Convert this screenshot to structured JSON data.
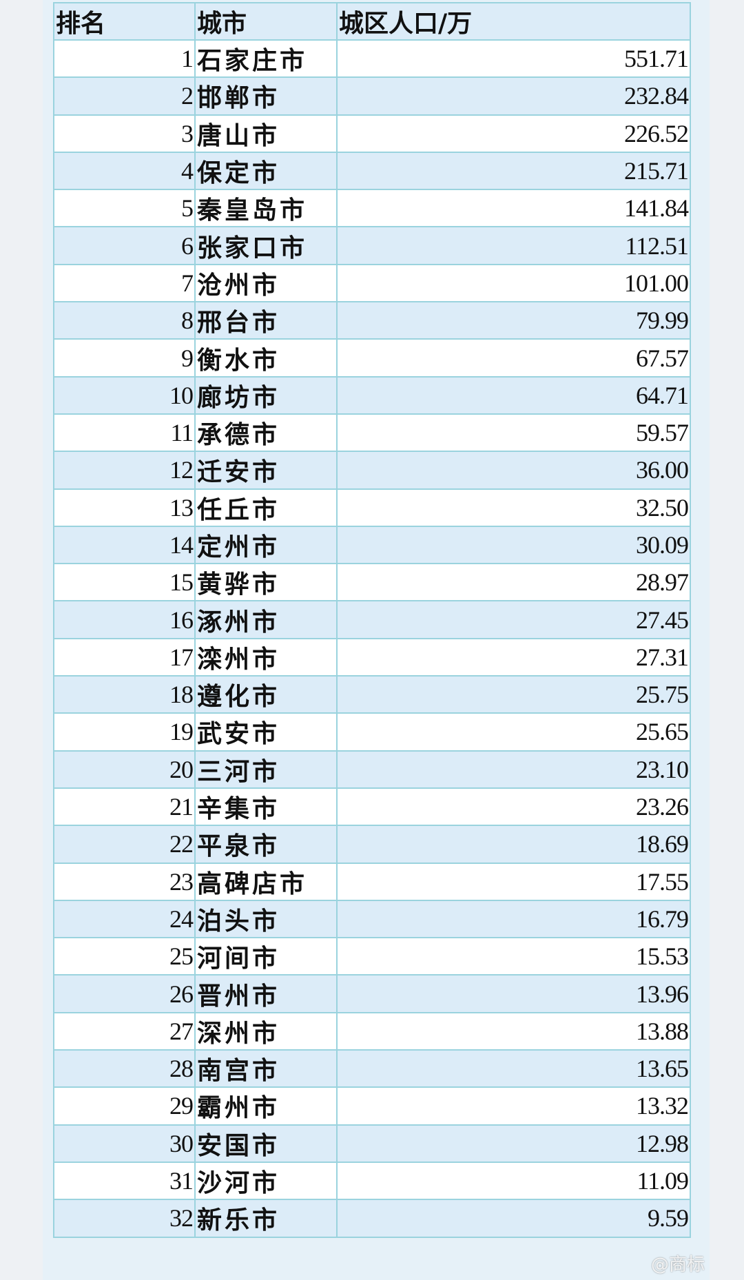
{
  "header": {
    "rank": "排名",
    "city": "城市",
    "population": "城区人口/万"
  },
  "rows": [
    {
      "rank": "1",
      "city": "石家庄市",
      "population": "551.71"
    },
    {
      "rank": "2",
      "city": "邯郸市",
      "population": "232.84"
    },
    {
      "rank": "3",
      "city": "唐山市",
      "population": "226.52"
    },
    {
      "rank": "4",
      "city": "保定市",
      "population": "215.71"
    },
    {
      "rank": "5",
      "city": "秦皇岛市",
      "population": "141.84"
    },
    {
      "rank": "6",
      "city": "张家口市",
      "population": "112.51"
    },
    {
      "rank": "7",
      "city": "沧州市",
      "population": "101.00"
    },
    {
      "rank": "8",
      "city": "邢台市",
      "population": "79.99"
    },
    {
      "rank": "9",
      "city": "衡水市",
      "population": "67.57"
    },
    {
      "rank": "10",
      "city": "廊坊市",
      "population": "64.71"
    },
    {
      "rank": "11",
      "city": "承德市",
      "population": "59.57"
    },
    {
      "rank": "12",
      "city": "迁安市",
      "population": "36.00"
    },
    {
      "rank": "13",
      "city": "任丘市",
      "population": "32.50"
    },
    {
      "rank": "14",
      "city": "定州市",
      "population": "30.09"
    },
    {
      "rank": "15",
      "city": "黄骅市",
      "population": "28.97"
    },
    {
      "rank": "16",
      "city": "涿州市",
      "population": "27.45"
    },
    {
      "rank": "17",
      "city": "滦州市",
      "population": "27.31"
    },
    {
      "rank": "18",
      "city": "遵化市",
      "population": "25.75"
    },
    {
      "rank": "19",
      "city": "武安市",
      "population": "25.65"
    },
    {
      "rank": "20",
      "city": "三河市",
      "population": "23.10"
    },
    {
      "rank": "21",
      "city": "辛集市",
      "population": "23.26"
    },
    {
      "rank": "22",
      "city": "平泉市",
      "population": "18.69"
    },
    {
      "rank": "23",
      "city": "高碑店市",
      "population": "17.55"
    },
    {
      "rank": "24",
      "city": "泊头市",
      "population": "16.79"
    },
    {
      "rank": "25",
      "city": "河间市",
      "population": "15.53"
    },
    {
      "rank": "26",
      "city": "晋州市",
      "population": "13.96"
    },
    {
      "rank": "27",
      "city": "深州市",
      "population": "13.88"
    },
    {
      "rank": "28",
      "city": "南宫市",
      "population": "13.65"
    },
    {
      "rank": "29",
      "city": "霸州市",
      "population": "13.32"
    },
    {
      "rank": "30",
      "city": "安国市",
      "population": "12.98"
    },
    {
      "rank": "31",
      "city": "沙河市",
      "population": "11.09"
    },
    {
      "rank": "32",
      "city": "新乐市",
      "population": "9.59"
    }
  ],
  "watermark": "@商标"
}
